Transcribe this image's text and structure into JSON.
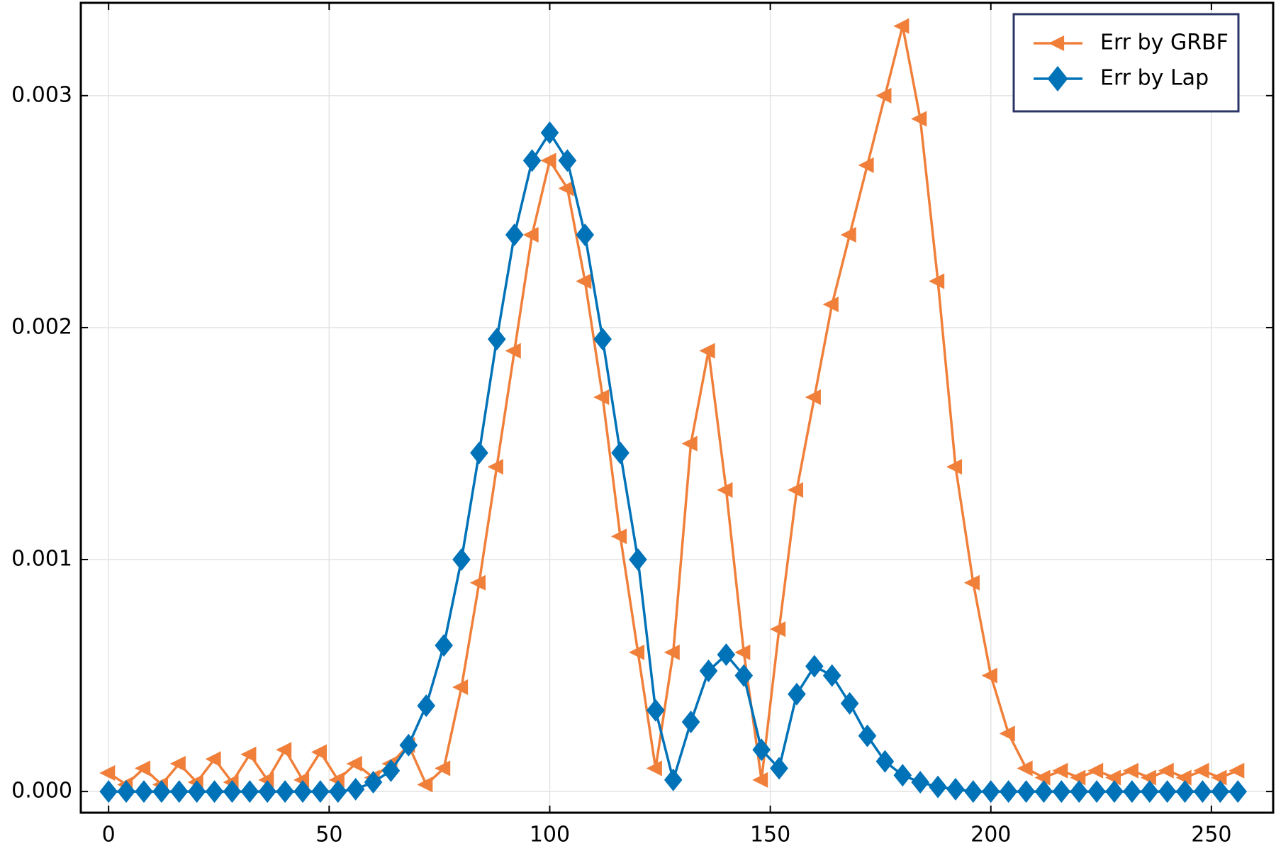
{
  "chart_data": {
    "type": "line",
    "x": [
      0,
      4,
      8,
      12,
      16,
      20,
      24,
      28,
      32,
      36,
      40,
      44,
      48,
      52,
      56,
      60,
      64,
      68,
      72,
      76,
      80,
      84,
      88,
      92,
      96,
      100,
      104,
      108,
      112,
      116,
      120,
      124,
      128,
      132,
      136,
      140,
      144,
      148,
      152,
      156,
      160,
      164,
      168,
      172,
      176,
      180,
      184,
      188,
      192,
      196,
      200,
      204,
      208,
      212,
      216,
      220,
      224,
      228,
      232,
      236,
      240,
      244,
      248,
      252,
      256
    ],
    "series": [
      {
        "name": "Err by GRBF",
        "color": "#f07f3a",
        "marker": "triangle-left",
        "values": [
          8e-05,
          3e-05,
          0.0001,
          3e-05,
          0.00012,
          4e-05,
          0.00014,
          4e-05,
          0.00016,
          5e-05,
          0.00018,
          5e-05,
          0.00017,
          5e-05,
          0.00012,
          6e-05,
          0.00012,
          0.0002,
          3e-05,
          0.0001,
          0.00045,
          0.0009,
          0.0014,
          0.0019,
          0.0024,
          0.00272,
          0.0026,
          0.0022,
          0.0017,
          0.0011,
          0.0006,
          0.0001,
          0.0006,
          0.0015,
          0.0019,
          0.0013,
          0.0006,
          5e-05,
          0.0007,
          0.0013,
          0.0017,
          0.0021,
          0.0024,
          0.0027,
          0.003,
          0.0033,
          0.0029,
          0.0022,
          0.0014,
          0.0009,
          0.0005,
          0.00025,
          0.0001,
          6e-05,
          9e-05,
          6e-05,
          9e-05,
          6e-05,
          9e-05,
          6e-05,
          9e-05,
          6e-05,
          9e-05,
          6e-05,
          9e-05
        ]
      },
      {
        "name": "Err by Lap",
        "color": "#0072b8",
        "marker": "diamond",
        "values": [
          0,
          0,
          0,
          0,
          0,
          0,
          0,
          0,
          0,
          0,
          0,
          0,
          0,
          0,
          1e-05,
          4e-05,
          9e-05,
          0.0002,
          0.00037,
          0.00063,
          0.001,
          0.00146,
          0.00195,
          0.0024,
          0.00272,
          0.00284,
          0.00272,
          0.0024,
          0.00195,
          0.00146,
          0.001,
          0.00035,
          5e-05,
          0.0003,
          0.00052,
          0.00059,
          0.0005,
          0.00018,
          0.0001,
          0.00042,
          0.00054,
          0.0005,
          0.00038,
          0.00024,
          0.00013,
          7e-05,
          4e-05,
          2e-05,
          1e-05,
          0,
          0,
          0,
          0,
          0,
          0,
          0,
          0,
          0,
          0,
          0,
          0,
          0,
          0,
          0,
          0
        ]
      }
    ],
    "xlim": [
      -6.3,
      264
    ],
    "ylim": [
      -9.13e-05,
      0.0034
    ],
    "xticks": [
      0,
      50,
      100,
      150,
      200,
      250
    ],
    "yticks": [
      {
        "value": 0,
        "label": "0.000"
      },
      0.001,
      0.002,
      0.003
    ],
    "grid": true,
    "legend": "upper right"
  }
}
